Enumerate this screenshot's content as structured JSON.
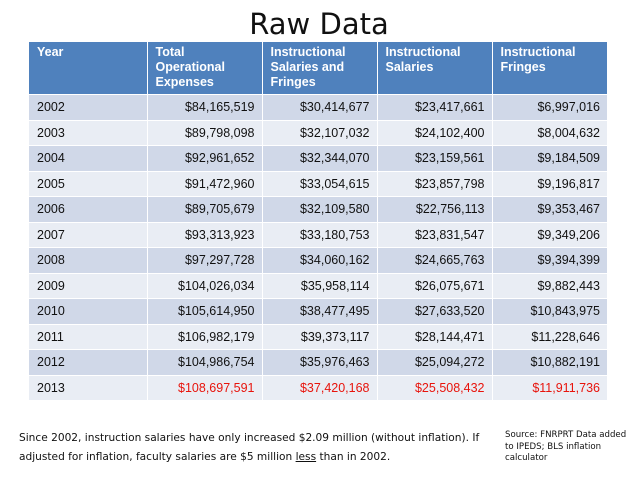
{
  "title": "Raw Data",
  "table": {
    "headers": [
      "Year",
      "Total Operational Expenses",
      "Instructional Salaries and Fringes",
      "Instructional Salaries",
      "Instructional Fringes"
    ],
    "rows": [
      [
        "2002",
        "$84,165,519",
        "$30,414,677",
        "$23,417,661",
        "$6,997,016"
      ],
      [
        "2003",
        "$89,798,098",
        "$32,107,032",
        "$24,102,400",
        "$8,004,632"
      ],
      [
        "2004",
        "$92,961,652",
        "$32,344,070",
        "$23,159,561",
        "$9,184,509"
      ],
      [
        "2005",
        "$91,472,960",
        "$33,054,615",
        "$23,857,798",
        "$9,196,817"
      ],
      [
        "2006",
        "$89,705,679",
        "$32,109,580",
        "$22,756,113",
        "$9,353,467"
      ],
      [
        "2007",
        "$93,313,923",
        "$33,180,753",
        "$23,831,547",
        "$9,349,206"
      ],
      [
        "2008",
        "$97,297,728",
        "$34,060,162",
        "$24,665,763",
        "$9,394,399"
      ],
      [
        "2009",
        "$104,026,034",
        "$35,958,114",
        "$26,075,671",
        "$9,882,443"
      ],
      [
        "2010",
        "$105,614,950",
        "$38,477,495",
        "$27,633,520",
        "$10,843,975"
      ],
      [
        "2011",
        "$106,982,179",
        "$39,373,117",
        "$28,144,471",
        "$11,228,646"
      ],
      [
        "2012",
        "$104,986,754",
        "$35,976,463",
        "$25,094,272",
        "$10,882,191"
      ],
      [
        "2013",
        "$108,697,591",
        "$37,420,168",
        "$25,508,432",
        "$11,911,736"
      ]
    ],
    "highlight_color": "#e8140c",
    "header_color": "#4f81bd"
  },
  "note": {
    "part1": "Since 2002, instruction salaries have only increased $2.09 million (without inflation).  If adjusted for inflation, faculty salaries are $5 million ",
    "underlined": "less",
    "part2": " than in 2002."
  },
  "source": "Source: FNRPRT Data added to IPEDS; BLS inflation calculator"
}
